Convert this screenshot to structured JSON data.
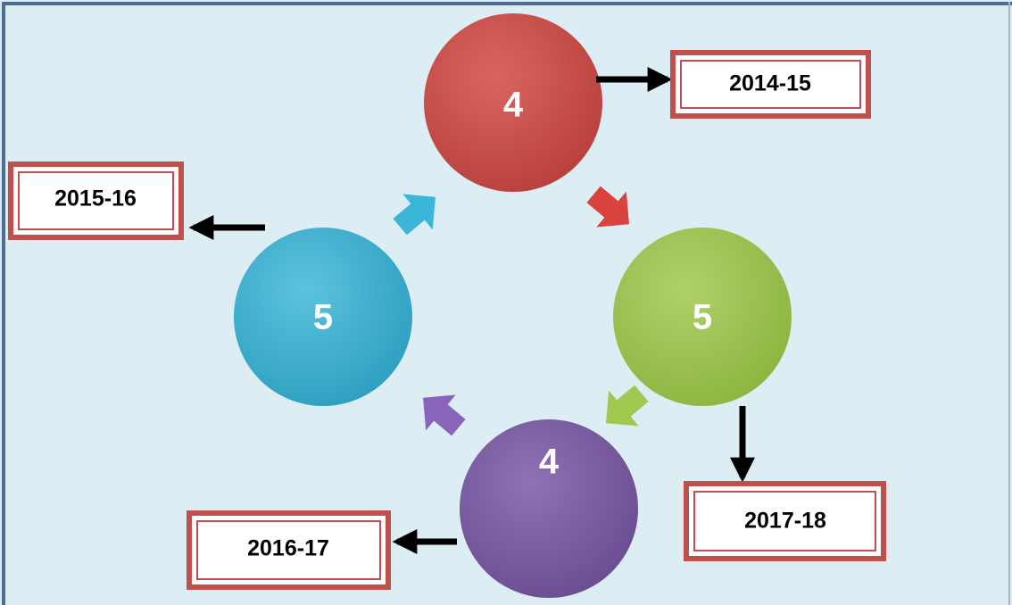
{
  "nodes": [
    {
      "label": 4,
      "year": "2014-15"
    },
    {
      "label": 5,
      "year": "2017-18"
    },
    {
      "label": 4,
      "year": "2016-17"
    },
    {
      "label": 5,
      "year": "2015-16"
    }
  ]
}
